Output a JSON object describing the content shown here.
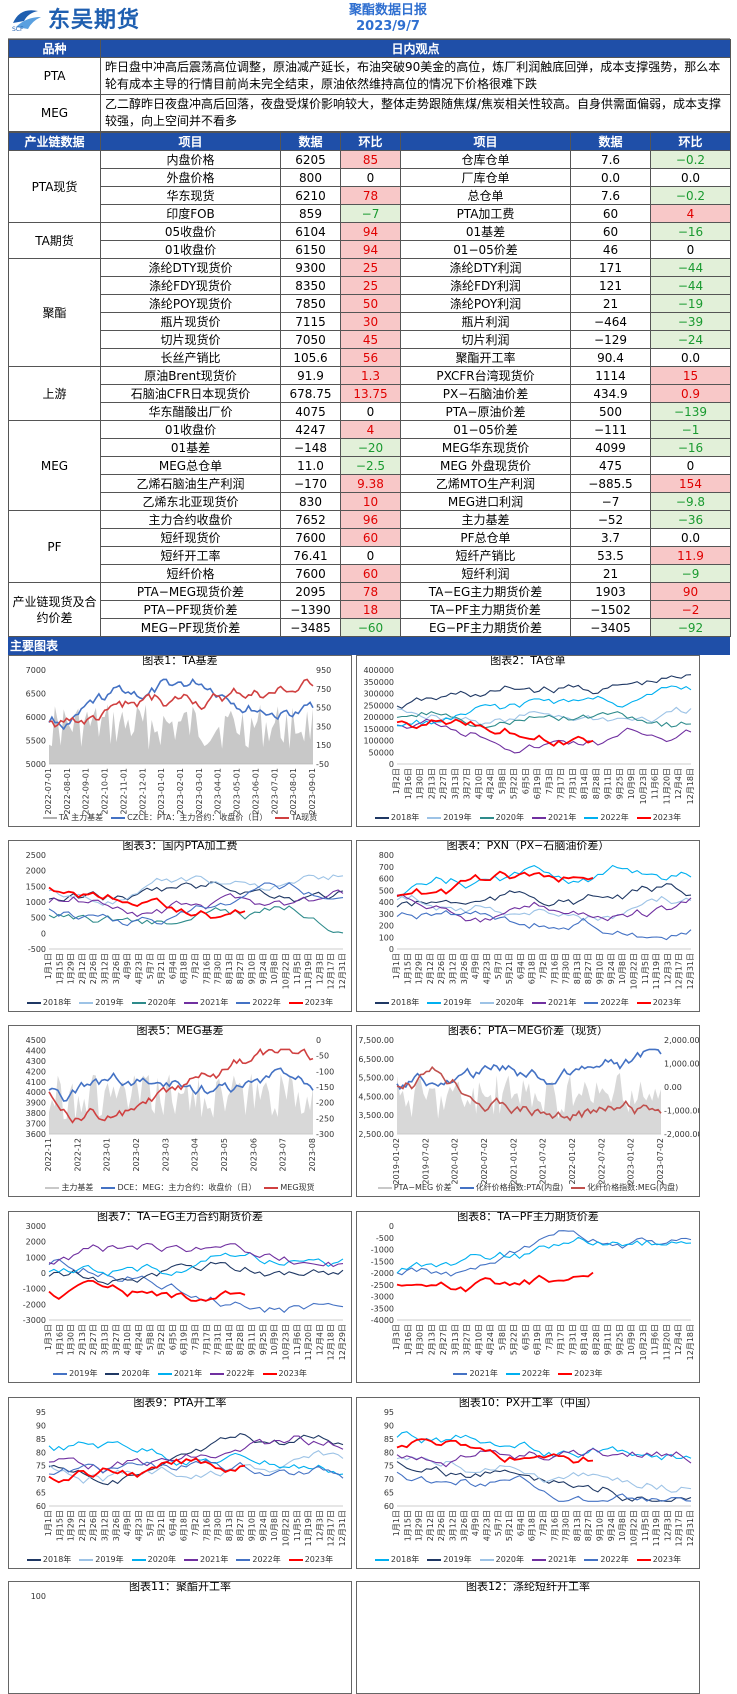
{
  "header": {
    "logo_text": "东吴期货",
    "logo_sub": "SCF",
    "report_title": "聚酯数据日报",
    "report_date": "2023/9/7"
  },
  "views": {
    "head_variety": "品种",
    "head_view": "日内观点",
    "rows": [
      {
        "variety": "PTA",
        "text": "昨日盘中冲高后震荡高位调整，原油减产延长，布油突破90美金的高位，炼厂利润触底回弹，成本支撑强势，那么本轮有成本主导的行情目前尚未完全结束，原油依然维持高位的情况下价格很难下跌"
      },
      {
        "variety": "MEG",
        "text": "乙二醇昨日夜盘冲高后回落，夜盘受煤价影响较大，整体走势跟随焦煤/焦炭相关性较高。自身供需面偏弱，成本支撑较强，向上空间并不看多"
      }
    ]
  },
  "data_table": {
    "headers": [
      "产业链数据",
      "项目",
      "数据",
      "环比",
      "项目",
      "数据",
      "环比"
    ],
    "groups": [
      {
        "name": "PTA现货",
        "rows": [
          [
            "内盘价格",
            "6205",
            "85",
            "r",
            "仓库仓单",
            "7.6",
            "−0.2",
            "g"
          ],
          [
            "外盘价格",
            "800",
            "0",
            "",
            "厂库仓单",
            "0.0",
            "0.0",
            ""
          ],
          [
            "华东现货",
            "6210",
            "78",
            "r",
            "总仓单",
            "7.6",
            "−0.2",
            "g"
          ],
          [
            "印度FOB",
            "859",
            "−7",
            "g",
            "PTA加工费",
            "60",
            "4",
            "r"
          ]
        ]
      },
      {
        "name": "TA期货",
        "rows": [
          [
            "05收盘价",
            "6104",
            "94",
            "r",
            "01基差",
            "60",
            "−16",
            "g"
          ],
          [
            "01收盘价",
            "6150",
            "94",
            "r",
            "01−05价差",
            "46",
            "0",
            ""
          ]
        ]
      },
      {
        "name": "聚酯",
        "rows": [
          [
            "涤纶DTY现货价",
            "9300",
            "25",
            "r",
            "涤纶DTY利润",
            "171",
            "−44",
            "g"
          ],
          [
            "涤纶FDY现货价",
            "8350",
            "25",
            "r",
            "涤纶FDY利润",
            "121",
            "−44",
            "g"
          ],
          [
            "涤纶POY现货价",
            "7850",
            "50",
            "r",
            "涤纶POY利润",
            "21",
            "−19",
            "g"
          ],
          [
            "瓶片现货价",
            "7115",
            "30",
            "r",
            "瓶片利润",
            "−464",
            "−39",
            "g"
          ],
          [
            "切片现货价",
            "7050",
            "45",
            "r",
            "切片利润",
            "−129",
            "−24",
            "g"
          ],
          [
            "长丝产销比",
            "105.6",
            "56",
            "r",
            "聚酯开工率",
            "90.4",
            "0.0",
            ""
          ]
        ]
      },
      {
        "name": "上游",
        "rows": [
          [
            "原油Brent现货价",
            "91.9",
            "1.3",
            "r",
            "PXCFR台湾现货价",
            "1114",
            "15",
            "r"
          ],
          [
            "石脑油CFR日本现货价",
            "678.75",
            "13.75",
            "r",
            "PX−石脑油价差",
            "434.9",
            "0.9",
            "r"
          ],
          [
            "华东醋酸出厂价",
            "4075",
            "0",
            "",
            "PTA−原油价差",
            "500",
            "−139",
            "g"
          ]
        ]
      },
      {
        "name": "MEG",
        "rows": [
          [
            "01收盘价",
            "4247",
            "4",
            "r",
            "01−05价差",
            "−111",
            "−1",
            "g"
          ],
          [
            "01基差",
            "−148",
            "−20",
            "g",
            "MEG华东现货价",
            "4099",
            "−16",
            "g"
          ],
          [
            "MEG总仓单",
            "11.0",
            "−2.5",
            "g",
            "MEG 外盘现货价",
            "475",
            "0",
            ""
          ],
          [
            "乙烯石脑油生产利润",
            "−170",
            "9.38",
            "r",
            "乙烯MTO生产利润",
            "−885.5",
            "154",
            "r"
          ],
          [
            "乙烯东北亚现货价",
            "830",
            "10",
            "r",
            "MEG进口利润",
            "−7",
            "−9.8",
            "g"
          ]
        ]
      },
      {
        "name": "PF",
        "rows": [
          [
            "主力合约收盘价",
            "7652",
            "96",
            "r",
            "主力基差",
            "−52",
            "−36",
            "g"
          ],
          [
            "短纤现货价",
            "7600",
            "60",
            "r",
            "PF总仓单",
            "3.7",
            "0.0",
            ""
          ],
          [
            "短纤开工率",
            "76.41",
            "0",
            "",
            "短纤产销比",
            "53.5",
            "11.9",
            "r"
          ],
          [
            "短纤价格",
            "7600",
            "60",
            "r",
            "短纤利润",
            "21",
            "−9",
            "g"
          ]
        ]
      },
      {
        "name": "产业链现货及合约价差",
        "rows": [
          [
            "PTA−MEG现货价差",
            "2095",
            "78",
            "r",
            "TA−EG主力期货价差",
            "1903",
            "90",
            "r"
          ],
          [
            "PTA−PF现货价差",
            "−1390",
            "18",
            "r",
            "TA−PF主力期货价差",
            "−1502",
            "−2",
            "r"
          ],
          [
            "MEG−PF现货价差",
            "−3485",
            "−60",
            "g",
            "EG−PF主力期货价差",
            "−3405",
            "−92",
            "g"
          ]
        ]
      }
    ]
  },
  "section_charts": "主要图表",
  "charts": [
    {
      "title": "图表1：TA基差",
      "y_left": [
        "7000",
        "6500",
        "6000",
        "5500",
        "5000"
      ],
      "y_right": [
        "950",
        "750",
        "550",
        "350",
        "150",
        "-50"
      ],
      "x": [
        "2022-07-01",
        "2022-08-01",
        "2022-09-01",
        "2022-10-01",
        "2022-11-01",
        "2022-12-01",
        "2023-01-01",
        "2023-02-01",
        "2023-03-01",
        "2023-04-01",
        "2023-05-01",
        "2023-06-01",
        "2023-07-01",
        "2023-08-01",
        "2023-09-01"
      ],
      "legend": [
        "TA 主力基差",
        "CZCE：PTA：主力合约：收盘价（日）",
        "TA现货"
      ],
      "colors": [
        "#b0b0b0",
        "#4472c4",
        "#d04040"
      ],
      "kind": "basis"
    },
    {
      "title": "图表2：TA仓单",
      "y_left": [
        "400000",
        "350000",
        "300000",
        "250000",
        "200000",
        "150000",
        "100000",
        "50000",
        "0"
      ],
      "y_right": [],
      "x": [
        "1月2日",
        "1月16日",
        "1月30日",
        "2月13日",
        "2月27日",
        "3月13日",
        "3月27日",
        "4月10日",
        "4月24日",
        "5月8日",
        "5月22日",
        "6月5日",
        "6月19日",
        "7月3日",
        "7月17日",
        "7月31日",
        "8月14日",
        "8月28日",
        "9月11日",
        "9月25日",
        "10月9日",
        "10月23日",
        "11月6日",
        "11月20日",
        "12月4日",
        "12月18日"
      ],
      "legend": [
        "2018年",
        "2019年",
        "2020年",
        "2021年",
        "2022年",
        "2023年"
      ],
      "colors": [
        "#1f3864",
        "#9dc3e6",
        "#2e8b8b",
        "#7030a0",
        "#00b0f0",
        "#ff0000"
      ],
      "kind": "years"
    },
    {
      "title": "图表3：国内PTA加工费",
      "y_left": [
        "2500",
        "2000",
        "1500",
        "1000",
        "500",
        "0",
        "-500"
      ],
      "y_right": [],
      "x": [
        "1月1日",
        "1月15日",
        "1月29日",
        "2月12日",
        "2月26日",
        "3月12日",
        "3月26日",
        "4月9日",
        "4月23日",
        "5月7日",
        "5月21日",
        "6月4日",
        "6月18日",
        "7月2日",
        "7月16日",
        "7月30日",
        "8月13日",
        "8月27日",
        "9月10日",
        "9月24日",
        "10月8日",
        "10月22日",
        "11月5日",
        "11月19日",
        "12月3日",
        "12月17日",
        "12月31日"
      ],
      "legend": [
        "2018年",
        "2019年",
        "2020年",
        "2021年",
        "2022年",
        "2023年"
      ],
      "colors": [
        "#1f3864",
        "#9dc3e6",
        "#2e8b8b",
        "#7030a0",
        "#4472c4",
        "#ff0000"
      ],
      "kind": "years"
    },
    {
      "title": "图表4：PXN（PX−石脑油价差）",
      "y_left": [
        "800",
        "700",
        "600",
        "500",
        "400",
        "300",
        "200",
        "100",
        "0"
      ],
      "y_right": [],
      "x": [
        "1月1日",
        "1月15日",
        "1月29日",
        "2月12日",
        "2月26日",
        "3月12日",
        "3月26日",
        "4月9日",
        "4月23日",
        "5月7日",
        "5月21日",
        "6月4日",
        "6月18日",
        "7月2日",
        "7月16日",
        "7月30日",
        "8月13日",
        "8月27日",
        "9月10日",
        "9月24日",
        "10月8日",
        "10月22日",
        "11月5日",
        "11月19日",
        "12月3日",
        "12月17日",
        "12月31日"
      ],
      "legend": [
        "2018年",
        "2019年",
        "2020年",
        "2021年",
        "2022年",
        "2023年"
      ],
      "colors": [
        "#1f3864",
        "#00b0f0",
        "#9dc3e6",
        "#7030a0",
        "#4472c4",
        "#ff0000"
      ],
      "kind": "years"
    },
    {
      "title": "图表5：MEG基差",
      "y_left": [
        "4500",
        "4400",
        "4300",
        "4200",
        "4100",
        "4000",
        "3900",
        "3800",
        "3700",
        "3600"
      ],
      "y_right": [
        "0",
        "-50",
        "-100",
        "-150",
        "-200",
        "-250",
        "-300"
      ],
      "x": [
        "2022-11",
        "2022-12",
        "2023-01",
        "2023-02",
        "2023-03",
        "2023-04",
        "2023-05",
        "2023-06",
        "2023-07",
        "2023-08"
      ],
      "legend": [
        "主力基差",
        "DCE：MEG：主力合约：收盘价（日）",
        "MEG现货"
      ],
      "colors": [
        "#c8c8c8",
        "#4472c4",
        "#d04040"
      ],
      "kind": "basis"
    },
    {
      "title": "图表6：PTA−MEG价差（现货）",
      "y_left": [
        "7,500.00",
        "6,500.00",
        "5,500.00",
        "4,500.00",
        "3,500.00",
        "2,500.00"
      ],
      "y_right": [
        "2,000.00",
        "1,000.00",
        "0.00",
        "-1,000.00",
        "-2,000.00"
      ],
      "x": [
        "2019-01-02",
        "2019-07-02",
        "2020-01-02",
        "2020-07-02",
        "2021-01-02",
        "2021-07-02",
        "2022-01-02",
        "2022-07-02",
        "2023-01-02",
        "2023-07-02"
      ],
      "legend": [
        "PTA−MEG 价差",
        "化纤价格指数:PTA(内盘)",
        "化纤价格指数:MEG(内盘)"
      ],
      "colors": [
        "#c8c8c8",
        "#4472c4",
        "#c0504d"
      ],
      "kind": "basis"
    },
    {
      "title": "图表7：TA−EG主力合约期货价差",
      "y_left": [
        "3000",
        "2000",
        "1000",
        "0",
        "-1000",
        "-2000",
        "-3000"
      ],
      "y_right": [],
      "x": [
        "1月3日",
        "1月16日",
        "1月30日",
        "2月13日",
        "2月27日",
        "3月13日",
        "3月27日",
        "4月10日",
        "4月24日",
        "5月8日",
        "5月22日",
        "6月5日",
        "6月19日",
        "7月3日",
        "7月17日",
        "7月31日",
        "8月14日",
        "8月28日",
        "9月11日",
        "9月25日",
        "10月9日",
        "10月23日",
        "11月6日",
        "11月20日",
        "12月4日",
        "12月18日",
        "12月29日"
      ],
      "legend": [
        "2019年",
        "2020年",
        "2021年",
        "2022年",
        "2023年"
      ],
      "colors": [
        "#4472c4",
        "#1f3864",
        "#00b0f0",
        "#7030a0",
        "#ff0000"
      ],
      "kind": "years"
    },
    {
      "title": "图表8：TA−PF主力期货价差",
      "y_left": [
        "0",
        "-500",
        "-1000",
        "-1500",
        "-2000",
        "-2500",
        "-3000",
        "-3500",
        "-4000"
      ],
      "y_right": [],
      "x": [
        "1月3日",
        "1月16日",
        "1月30日",
        "2月13日",
        "2月27日",
        "3月13日",
        "3月27日",
        "4月10日",
        "4月24日",
        "5月8日",
        "5月22日",
        "6月5日",
        "6月19日",
        "7月3日",
        "7月17日",
        "7月31日",
        "8月14日",
        "8月28日",
        "9月11日",
        "9月25日",
        "10月9日",
        "10月23日",
        "11月6日",
        "11月20日",
        "12月4日",
        "12月18日"
      ],
      "legend": [
        "2021年",
        "2022年",
        "2023年"
      ],
      "colors": [
        "#4472c4",
        "#00b0f0",
        "#ff0000"
      ],
      "kind": "years"
    },
    {
      "title": "图表9：PTA开工率",
      "y_left": [
        "95",
        "90",
        "85",
        "80",
        "75",
        "70",
        "65",
        "60"
      ],
      "y_right": [],
      "x": [
        "1月1日",
        "1月15日",
        "1月29日",
        "2月12日",
        "2月26日",
        "3月12日",
        "3月26日",
        "4月9日",
        "4月23日",
        "5月7日",
        "5月21日",
        "6月4日",
        "6月18日",
        "7月2日",
        "7月16日",
        "7月30日",
        "8月13日",
        "8月27日",
        "9月10日",
        "9月24日",
        "10月8日",
        "10月22日",
        "11月5日",
        "11月19日",
        "12月3日",
        "12月17日",
        "12月31日"
      ],
      "legend": [
        "2018年",
        "2019年",
        "2020年",
        "2021年",
        "2022年",
        "2023年"
      ],
      "colors": [
        "#1f3864",
        "#9dc3e6",
        "#00b0f0",
        "#7030a0",
        "#4472c4",
        "#ff0000"
      ],
      "kind": "years"
    },
    {
      "title": "图表10：PX开工率（中国）",
      "y_left": [
        "95",
        "90",
        "85",
        "80",
        "75",
        "70",
        "65",
        "60"
      ],
      "y_right": [],
      "x": [
        "1月1日",
        "1月15日",
        "1月29日",
        "2月12日",
        "2月26日",
        "3月12日",
        "3月26日",
        "4月9日",
        "4月23日",
        "5月7日",
        "5月21日",
        "6月4日",
        "6月18日",
        "7月2日",
        "7月16日",
        "7月30日",
        "8月13日",
        "8月27日",
        "9月10日",
        "9月24日",
        "10月8日",
        "10月22日",
        "11月5日",
        "11月19日",
        "12月3日",
        "12月17日",
        "12月31日"
      ],
      "legend": [
        "2018年",
        "2019年",
        "2020年",
        "2021年",
        "2022年",
        "2023年"
      ],
      "colors": [
        "#00b0f0",
        "#1f3864",
        "#9dc3e6",
        "#7030a0",
        "#4472c4",
        "#ff0000"
      ],
      "kind": "years"
    },
    {
      "title": "图表11：聚酯开工率",
      "y_left": [
        "100"
      ],
      "y_right": [],
      "x": [],
      "legend": [],
      "colors": [
        "#1f3864",
        "#9dc3e6",
        "#00b0f0",
        "#7030a0",
        "#4472c4",
        "#ff0000"
      ],
      "kind": "years"
    },
    {
      "title": "图表12：涤纶短纤开工率",
      "y_left": [],
      "y_right": [],
      "x": [],
      "legend": [],
      "colors": [
        "#7030a0",
        "#4472c4",
        "#ff0000"
      ],
      "kind": "years"
    }
  ]
}
